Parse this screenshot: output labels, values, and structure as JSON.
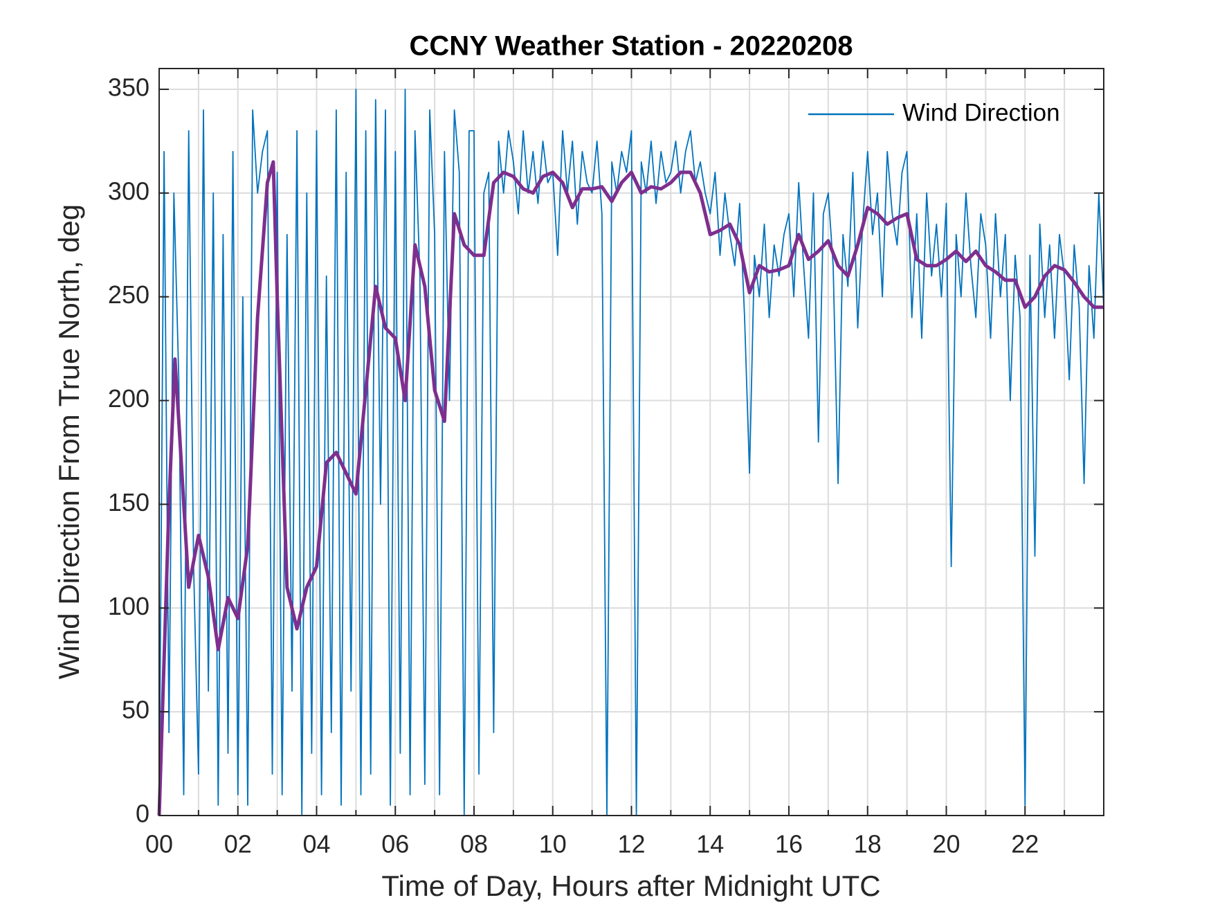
{
  "chart_data": {
    "type": "line",
    "title": "CCNY Weather Station - 20220208",
    "xlabel": "Time of Day, Hours after Midnight UTC",
    "ylabel": "Wind Direction From True North, deg",
    "xlim": [
      0,
      24
    ],
    "ylim": [
      0,
      360
    ],
    "xticks": [
      {
        "value": 0,
        "label": "00"
      },
      {
        "value": 2,
        "label": "02"
      },
      {
        "value": 4,
        "label": "04"
      },
      {
        "value": 6,
        "label": "06"
      },
      {
        "value": 8,
        "label": "08"
      },
      10,
      12,
      14,
      16,
      18,
      20,
      22
    ],
    "xminorticks": [
      1,
      3,
      5,
      7,
      9,
      11,
      13,
      15,
      17,
      19,
      21,
      23
    ],
    "yticks": [
      0,
      50,
      100,
      150,
      200,
      250,
      300,
      350
    ],
    "grid": true,
    "legend": "northeast",
    "series": [
      {
        "name": "Wind Direction",
        "color": "#0072bd",
        "x": [
          0,
          0.125,
          0.25,
          0.375,
          0.5,
          0.625,
          0.75,
          0.875,
          1,
          1.125,
          1.25,
          1.375,
          1.5,
          1.625,
          1.75,
          1.875,
          2,
          2.125,
          2.25,
          2.375,
          2.5,
          2.625,
          2.75,
          2.875,
          3,
          3.125,
          3.25,
          3.375,
          3.5,
          3.625,
          3.75,
          3.875,
          4,
          4.125,
          4.25,
          4.375,
          4.5,
          4.625,
          4.75,
          4.875,
          5,
          5.125,
          5.25,
          5.375,
          5.5,
          5.625,
          5.75,
          5.875,
          6,
          6.125,
          6.25,
          6.375,
          6.5,
          6.625,
          6.75,
          6.875,
          7,
          7.125,
          7.25,
          7.375,
          7.5,
          7.625,
          7.75,
          7.875,
          8,
          8.125,
          8.25,
          8.375,
          8.5,
          8.625,
          8.75,
          8.875,
          9,
          9.125,
          9.25,
          9.375,
          9.5,
          9.625,
          9.75,
          9.875,
          10,
          10.125,
          10.25,
          10.375,
          10.5,
          10.625,
          10.75,
          10.875,
          11,
          11.125,
          11.25,
          11.375,
          11.5,
          11.625,
          11.75,
          11.875,
          12,
          12.125,
          12.25,
          12.375,
          12.5,
          12.625,
          12.75,
          12.875,
          13,
          13.125,
          13.25,
          13.375,
          13.5,
          13.625,
          13.75,
          13.875,
          14,
          14.125,
          14.25,
          14.375,
          14.5,
          14.625,
          14.75,
          14.875,
          15,
          15.125,
          15.25,
          15.375,
          15.5,
          15.625,
          15.75,
          15.875,
          16,
          16.125,
          16.25,
          16.375,
          16.5,
          16.625,
          16.75,
          16.875,
          17,
          17.125,
          17.25,
          17.375,
          17.5,
          17.625,
          17.75,
          17.875,
          18,
          18.125,
          18.25,
          18.375,
          18.5,
          18.625,
          18.75,
          18.875,
          19,
          19.125,
          19.25,
          19.375,
          19.5,
          19.625,
          19.75,
          19.875,
          20,
          20.125,
          20.25,
          20.375,
          20.5,
          20.625,
          20.75,
          20.875,
          21,
          21.125,
          21.25,
          21.375,
          21.5,
          21.625,
          21.75,
          21.875,
          22,
          22.125,
          22.25,
          22.375,
          22.5,
          22.625,
          22.75,
          22.875,
          23,
          23.125,
          23.25,
          23.375,
          23.5,
          23.625,
          23.75,
          23.875,
          24
        ],
        "values": [
          0,
          320,
          40,
          300,
          210,
          10,
          330,
          120,
          20,
          340,
          60,
          300,
          5,
          280,
          30,
          320,
          10,
          250,
          5,
          340,
          300,
          320,
          330,
          20,
          310,
          10,
          280,
          60,
          330,
          0,
          300,
          30,
          330,
          10,
          260,
          40,
          340,
          5,
          310,
          60,
          350,
          10,
          330,
          20,
          345,
          150,
          340,
          5,
          320,
          30,
          350,
          10,
          330,
          260,
          15,
          340,
          280,
          10,
          320,
          200,
          340,
          310,
          0,
          330,
          330,
          20,
          300,
          310,
          40,
          325,
          300,
          330,
          315,
          290,
          330,
          300,
          320,
          295,
          325,
          305,
          310,
          270,
          330,
          300,
          325,
          285,
          320,
          305,
          300,
          325,
          290,
          0,
          315,
          300,
          320,
          310,
          330,
          0,
          315,
          300,
          325,
          295,
          320,
          305,
          310,
          325,
          300,
          320,
          330,
          305,
          315,
          300,
          290,
          310,
          270,
          300,
          280,
          265,
          295,
          240,
          165,
          270,
          250,
          285,
          240,
          275,
          260,
          280,
          290,
          250,
          305,
          265,
          230,
          300,
          180,
          290,
          300,
          265,
          160,
          280,
          255,
          310,
          235,
          285,
          320,
          280,
          300,
          250,
          320,
          290,
          275,
          310,
          320,
          240,
          290,
          230,
          300,
          260,
          285,
          250,
          295,
          120,
          280,
          250,
          300,
          265,
          240,
          290,
          275,
          230,
          290,
          250,
          280,
          200,
          270,
          240,
          5,
          270,
          125,
          285,
          240,
          275,
          230,
          280,
          260,
          210,
          275,
          245,
          160,
          265,
          230,
          300,
          245
        ]
      },
      {
        "color": "#7e2f8e",
        "x": [
          0,
          0.25,
          0.4,
          0.5,
          0.75,
          1,
          1.25,
          1.5,
          1.75,
          2,
          2.25,
          2.5,
          2.75,
          2.9,
          3,
          3.25,
          3.5,
          3.75,
          4,
          4.25,
          4.5,
          4.75,
          5,
          5.25,
          5.5,
          5.75,
          6,
          6.25,
          6.5,
          6.75,
          7,
          7.25,
          7.5,
          7.75,
          8,
          8.25,
          8.5,
          8.75,
          9,
          9.25,
          9.5,
          9.75,
          10,
          10.25,
          10.5,
          10.75,
          11,
          11.25,
          11.5,
          11.75,
          12,
          12.25,
          12.5,
          12.75,
          13,
          13.25,
          13.5,
          13.75,
          14,
          14.25,
          14.5,
          14.75,
          15,
          15.25,
          15.5,
          15.75,
          16,
          16.25,
          16.5,
          16.75,
          17,
          17.25,
          17.5,
          17.75,
          18,
          18.25,
          18.5,
          18.75,
          19,
          19.25,
          19.5,
          19.75,
          20,
          20.25,
          20.5,
          20.75,
          21,
          21.25,
          21.5,
          21.75,
          22,
          22.25,
          22.5,
          22.75,
          23,
          23.25,
          23.5,
          23.75,
          24
        ],
        "values": [
          0,
          150,
          220,
          190,
          110,
          135,
          115,
          80,
          105,
          95,
          130,
          240,
          305,
          315,
          250,
          110,
          90,
          110,
          120,
          170,
          175,
          165,
          155,
          205,
          255,
          235,
          230,
          200,
          275,
          255,
          205,
          190,
          290,
          275,
          270,
          270,
          305,
          310,
          308,
          302,
          300,
          308,
          310,
          305,
          293,
          302,
          302,
          303,
          296,
          305,
          310,
          300,
          303,
          302,
          305,
          310,
          310,
          300,
          280,
          282,
          285,
          275,
          252,
          265,
          262,
          263,
          265,
          280,
          268,
          272,
          277,
          265,
          260,
          275,
          293,
          290,
          285,
          288,
          290,
          268,
          265,
          265,
          268,
          272,
          267,
          272,
          265,
          262,
          258,
          258,
          245,
          250,
          260,
          265,
          263,
          257,
          250,
          245,
          245
        ]
      }
    ]
  }
}
